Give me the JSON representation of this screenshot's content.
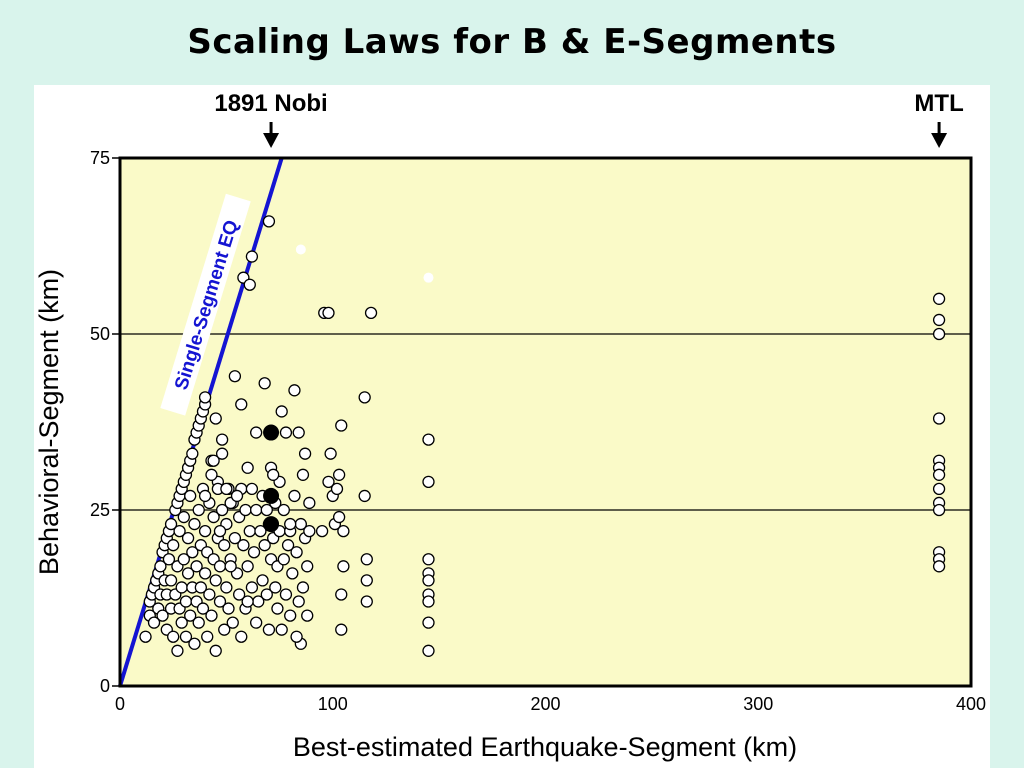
{
  "slide": {
    "title": "Scaling Laws for B & E-Segments"
  },
  "colors": {
    "background": "#d9f4ec",
    "plot_area": "#fafac8",
    "line": "#1414d2",
    "point_fill": "#ffffff",
    "highlight_fill": "#000000"
  },
  "chart_data": {
    "type": "scatter",
    "title": "",
    "xlabel": "Best-estimated Earthquake-Segment (km)",
    "ylabel": "Behavioral-Segment (km)",
    "xlim": [
      0,
      400
    ],
    "ylim": [
      0,
      75
    ],
    "x_ticks": [
      0,
      100,
      200,
      300,
      400
    ],
    "y_ticks": [
      0,
      25,
      50,
      75
    ],
    "grid": "horizontal",
    "reference_line": {
      "label": "Single-Segment EQ",
      "points": [
        [
          0,
          0
        ],
        [
          76,
          75
        ]
      ]
    },
    "markers": [
      {
        "label": "1891 Nobi",
        "x": 71,
        "style": "down-arrow"
      },
      {
        "label": "MTL",
        "x": 385,
        "style": "down-arrow"
      }
    ],
    "series": [
      {
        "style": "open-circle",
        "points": [
          [
            12,
            7
          ],
          [
            14,
            10
          ],
          [
            14,
            12
          ],
          [
            15,
            13
          ],
          [
            16,
            14
          ],
          [
            17,
            15
          ],
          [
            18,
            16
          ],
          [
            19,
            17
          ],
          [
            20,
            19
          ],
          [
            21,
            20
          ],
          [
            22,
            21
          ],
          [
            23,
            22
          ],
          [
            24,
            23
          ],
          [
            26,
            25
          ],
          [
            27,
            26
          ],
          [
            28,
            27
          ],
          [
            29,
            28
          ],
          [
            30,
            29
          ],
          [
            31,
            30
          ],
          [
            32,
            31
          ],
          [
            33,
            32
          ],
          [
            34,
            33
          ],
          [
            35,
            35
          ],
          [
            36,
            36
          ],
          [
            37,
            37
          ],
          [
            38,
            38
          ],
          [
            39,
            39
          ],
          [
            40,
            40
          ],
          [
            40,
            41
          ],
          [
            16,
            9
          ],
          [
            18,
            11
          ],
          [
            19,
            13
          ],
          [
            20,
            10
          ],
          [
            21,
            15
          ],
          [
            22,
            8
          ],
          [
            22,
            13
          ],
          [
            23,
            18
          ],
          [
            24,
            11
          ],
          [
            24,
            15
          ],
          [
            25,
            7
          ],
          [
            25,
            20
          ],
          [
            26,
            13
          ],
          [
            27,
            17
          ],
          [
            27,
            5
          ],
          [
            28,
            22
          ],
          [
            28,
            11
          ],
          [
            29,
            14
          ],
          [
            29,
            9
          ],
          [
            30,
            18
          ],
          [
            30,
            24
          ],
          [
            31,
            7
          ],
          [
            31,
            12
          ],
          [
            32,
            16
          ],
          [
            32,
            21
          ],
          [
            33,
            10
          ],
          [
            33,
            27
          ],
          [
            34,
            14
          ],
          [
            34,
            19
          ],
          [
            35,
            6
          ],
          [
            35,
            23
          ],
          [
            36,
            12
          ],
          [
            36,
            17
          ],
          [
            37,
            25
          ],
          [
            37,
            9
          ],
          [
            38,
            20
          ],
          [
            38,
            14
          ],
          [
            39,
            28
          ],
          [
            39,
            11
          ],
          [
            40,
            16
          ],
          [
            40,
            22
          ],
          [
            41,
            7
          ],
          [
            41,
            19
          ],
          [
            42,
            13
          ],
          [
            42,
            26
          ],
          [
            43,
            10
          ],
          [
            43,
            32
          ],
          [
            44,
            18
          ],
          [
            44,
            24
          ],
          [
            45,
            15
          ],
          [
            45,
            5
          ],
          [
            46,
            21
          ],
          [
            46,
            29
          ],
          [
            47,
            12
          ],
          [
            47,
            17
          ],
          [
            48,
            33
          ],
          [
            48,
            25
          ],
          [
            49,
            8
          ],
          [
            49,
            20
          ],
          [
            50,
            23
          ],
          [
            50,
            14
          ],
          [
            51,
            28
          ],
          [
            51,
            11
          ],
          [
            52,
            18
          ],
          [
            53,
            26
          ],
          [
            53,
            9
          ],
          [
            54,
            21
          ],
          [
            54,
            44
          ],
          [
            55,
            16
          ],
          [
            56,
            24
          ],
          [
            56,
            13
          ],
          [
            57,
            28
          ],
          [
            57,
            7
          ],
          [
            58,
            20
          ],
          [
            59,
            25
          ],
          [
            59,
            11
          ],
          [
            60,
            31
          ],
          [
            60,
            17
          ],
          [
            61,
            22
          ],
          [
            62,
            14
          ],
          [
            62,
            28
          ],
          [
            63,
            19
          ],
          [
            64,
            25
          ],
          [
            64,
            9
          ],
          [
            65,
            12
          ],
          [
            66,
            22
          ],
          [
            67,
            27
          ],
          [
            67,
            15
          ],
          [
            68,
            20
          ],
          [
            68,
            43
          ],
          [
            69,
            25
          ],
          [
            69,
            13
          ],
          [
            70,
            23
          ],
          [
            70,
            8
          ],
          [
            71,
            31
          ],
          [
            71,
            18
          ],
          [
            72,
            21
          ],
          [
            73,
            26
          ],
          [
            73,
            14
          ],
          [
            74,
            17
          ],
          [
            74,
            11
          ],
          [
            75,
            29
          ],
          [
            75,
            22
          ],
          [
            76,
            8
          ],
          [
            77,
            18
          ],
          [
            77,
            25
          ],
          [
            78,
            13
          ],
          [
            78,
            36
          ],
          [
            79,
            20
          ],
          [
            80,
            10
          ],
          [
            80,
            22
          ],
          [
            81,
            16
          ],
          [
            82,
            27
          ],
          [
            82,
            42
          ],
          [
            83,
            19
          ],
          [
            84,
            12
          ],
          [
            84,
            36
          ],
          [
            85,
            23
          ],
          [
            85,
            6
          ],
          [
            86,
            30
          ],
          [
            86,
            14
          ],
          [
            87,
            21
          ],
          [
            87,
            33
          ],
          [
            88,
            17
          ],
          [
            88,
            10
          ],
          [
            89,
            26
          ],
          [
            89,
            22
          ],
          [
            40,
            27
          ],
          [
            43,
            30
          ],
          [
            45,
            38
          ],
          [
            46,
            28
          ],
          [
            48,
            35
          ],
          [
            50,
            28
          ],
          [
            52,
            26
          ],
          [
            55,
            27
          ],
          [
            57,
            40
          ],
          [
            58,
            58
          ],
          [
            61,
            57
          ],
          [
            62,
            61
          ],
          [
            70,
            66
          ],
          [
            44,
            32
          ],
          [
            47,
            22
          ],
          [
            52,
            17
          ],
          [
            60,
            12
          ],
          [
            64,
            36
          ],
          [
            72,
            30
          ],
          [
            76,
            39
          ],
          [
            80,
            23
          ],
          [
            83,
            7
          ],
          [
            95,
            22
          ],
          [
            96,
            53
          ],
          [
            98,
            53
          ],
          [
            98,
            29
          ],
          [
            99,
            33
          ],
          [
            100,
            27
          ],
          [
            101,
            23
          ],
          [
            102,
            28
          ],
          [
            103,
            24
          ],
          [
            103,
            30
          ],
          [
            104,
            37
          ],
          [
            105,
            22
          ],
          [
            104,
            13
          ],
          [
            104,
            8
          ],
          [
            105,
            17
          ],
          [
            115,
            41
          ],
          [
            115,
            27
          ],
          [
            116,
            18
          ],
          [
            116,
            15
          ],
          [
            116,
            12
          ],
          [
            118,
            53
          ],
          [
            145,
            35
          ],
          [
            145,
            29
          ],
          [
            145,
            18
          ],
          [
            145,
            16
          ],
          [
            145,
            15
          ],
          [
            145,
            13
          ],
          [
            145,
            12
          ],
          [
            145,
            9
          ],
          [
            145,
            5
          ],
          [
            385,
            55
          ],
          [
            385,
            52
          ],
          [
            385,
            50
          ],
          [
            385,
            38
          ],
          [
            385,
            32
          ],
          [
            385,
            31
          ],
          [
            385,
            30
          ],
          [
            385,
            28
          ],
          [
            385,
            26
          ],
          [
            385,
            25
          ],
          [
            385,
            19
          ],
          [
            385,
            18
          ],
          [
            385,
            17
          ]
        ]
      },
      {
        "style": "filled-circle",
        "points": [
          [
            71,
            36
          ],
          [
            71,
            27
          ],
          [
            71,
            23
          ]
        ]
      },
      {
        "style": "white-dot",
        "points": [
          [
            85,
            62
          ],
          [
            145,
            58
          ]
        ]
      }
    ]
  }
}
